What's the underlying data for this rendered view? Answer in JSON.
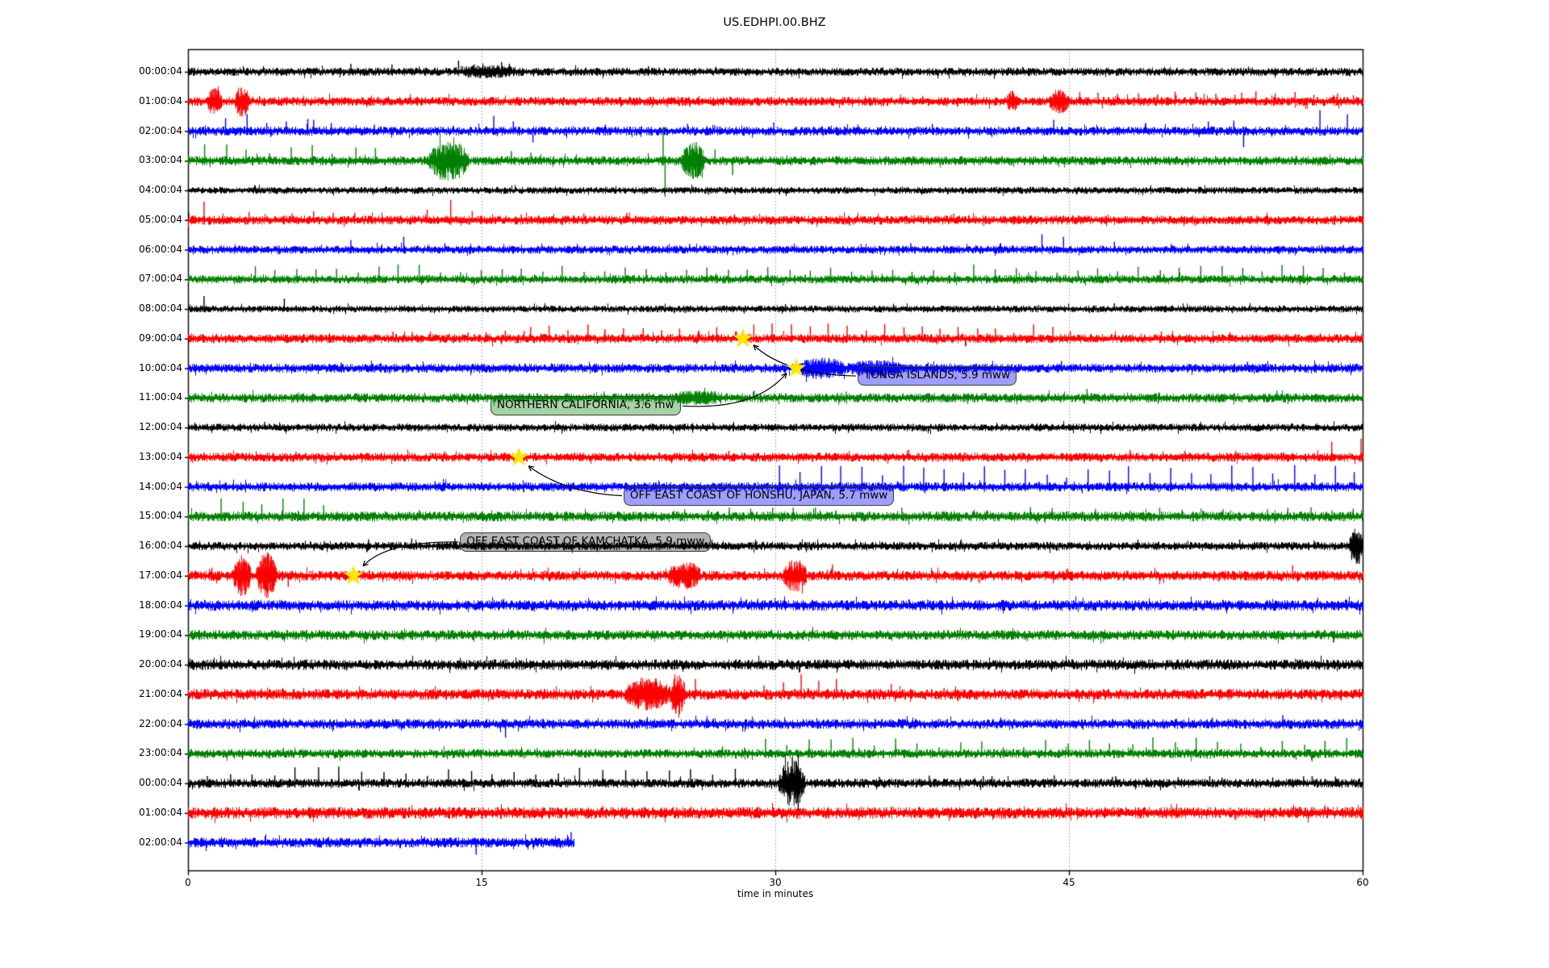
{
  "chart_data": {
    "type": "line",
    "subtype": "helicorder-dayplot",
    "title": "US.EDHPI.00.BHZ",
    "xlabel": "time in minutes",
    "xlim": [
      0,
      60
    ],
    "xticks": [
      0,
      15,
      30,
      45,
      60
    ],
    "grid_minutes": [
      15,
      30,
      45
    ],
    "grid_style": "dotted-vertical",
    "legend": "none",
    "trace_color_cycle": [
      "#000000",
      "#ff0000",
      "#0000ff",
      "#008000"
    ],
    "star_color": "#ffe600",
    "rows": [
      {
        "label": "00:00:04",
        "color": "#000000",
        "amp": 4.5,
        "end": 60,
        "seed": 11,
        "spikes": [
          [
            8.3,
            10
          ],
          [
            10.4,
            9
          ],
          [
            13.8,
            14
          ],
          [
            14.6,
            9
          ],
          [
            16.0,
            12
          ],
          [
            16.4,
            10
          ],
          [
            23.5,
            7
          ]
        ],
        "bursts": [
          [
            13.5,
            17.0,
            3
          ]
        ],
        "trains": []
      },
      {
        "label": "01:00:04",
        "color": "#ff0000",
        "amp": 5.0,
        "end": 60,
        "seed": 22,
        "spikes": [
          [
            50.4,
            12
          ],
          [
            53.8,
            11
          ],
          [
            58.7,
            10
          ]
        ],
        "bursts": [
          [
            1.0,
            1.7,
            11
          ],
          [
            2.4,
            3.1,
            13
          ],
          [
            41.8,
            42.4,
            7
          ],
          [
            44.0,
            45.0,
            9
          ]
        ],
        "trains": [
          [
            45.5,
            60,
            1.0,
            9
          ]
        ]
      },
      {
        "label": "02:00:04",
        "color": "#0000ff",
        "amp": 5.0,
        "end": 60,
        "seed": 33,
        "spikes": [
          [
            1.9,
            16
          ],
          [
            3.0,
            21
          ],
          [
            4.0,
            10
          ],
          [
            5.0,
            12
          ],
          [
            6.1,
            15
          ],
          [
            6.4,
            14
          ],
          [
            7.3,
            10
          ],
          [
            9.5,
            8
          ],
          [
            15.6,
            19
          ],
          [
            16.6,
            12
          ],
          [
            17.6,
            -14
          ],
          [
            21.3,
            8
          ],
          [
            25.5,
            9
          ],
          [
            29.9,
            11
          ],
          [
            34.2,
            8
          ],
          [
            38.0,
            9
          ],
          [
            44.2,
            14
          ],
          [
            48.9,
            10
          ],
          [
            52.1,
            12
          ],
          [
            53.4,
            13
          ],
          [
            53.9,
            -20
          ],
          [
            57.8,
            26
          ],
          [
            59.2,
            21
          ]
        ],
        "bursts": [],
        "trains": []
      },
      {
        "label": "03:00:04",
        "color": "#008000",
        "amp": 5.0,
        "end": 60,
        "seed": 44,
        "spikes": [
          [
            16.5,
            12
          ],
          [
            17.5,
            10
          ],
          [
            24.25,
            42
          ],
          [
            24.35,
            -45
          ],
          [
            26.9,
            14
          ],
          [
            27.8,
            -18
          ]
        ],
        "bursts": [
          [
            12.3,
            14.3,
            18
          ],
          [
            25.2,
            26.4,
            16
          ]
        ],
        "trains": [
          [
            0.8,
            9.7,
            1.1,
            15
          ]
        ]
      },
      {
        "label": "04:00:04",
        "color": "#000000",
        "amp": 3.8,
        "end": 60,
        "seed": 55,
        "spikes": [],
        "bursts": [],
        "trains": []
      },
      {
        "label": "05:00:04",
        "color": "#ff0000",
        "amp": 5.0,
        "end": 60,
        "seed": 66,
        "spikes": [
          [
            0.8,
            23
          ],
          [
            3.1,
            10
          ],
          [
            5.3,
            8
          ],
          [
            6.4,
            11
          ],
          [
            7.4,
            9
          ],
          [
            8.5,
            9
          ],
          [
            12.2,
            13
          ],
          [
            13.4,
            25
          ],
          [
            14.5,
            11
          ],
          [
            17.0,
            7
          ],
          [
            20.2,
            8
          ],
          [
            22.4,
            9
          ],
          [
            27.9,
            7
          ],
          [
            39.1,
            8
          ]
        ],
        "bursts": [],
        "trains": []
      },
      {
        "label": "06:00:04",
        "color": "#0000ff",
        "amp": 4.5,
        "end": 60,
        "seed": 77,
        "spikes": [
          [
            8.3,
            12
          ],
          [
            11.0,
            16
          ],
          [
            13.1,
            8
          ],
          [
            25.6,
            7
          ],
          [
            36.9,
            8
          ],
          [
            43.6,
            19
          ],
          [
            44.7,
            16
          ],
          [
            47.3,
            10
          ],
          [
            50.2,
            7
          ]
        ],
        "bursts": [],
        "trains": []
      },
      {
        "label": "07:00:04",
        "color": "#008000",
        "amp": 4.6,
        "end": 60,
        "seed": 88,
        "spikes": [],
        "bursts": [],
        "trains": [
          [
            3.4,
            60,
            1.05,
            13
          ]
        ]
      },
      {
        "label": "08:00:04",
        "color": "#000000",
        "amp": 3.8,
        "end": 60,
        "seed": 99,
        "spikes": [
          [
            0.8,
            16
          ],
          [
            4.9,
            13
          ],
          [
            30.5,
            6
          ],
          [
            47.3,
            7
          ]
        ],
        "bursts": [],
        "trains": []
      },
      {
        "label": "09:00:04",
        "color": "#ff0000",
        "amp": 5.0,
        "end": 60,
        "seed": 110,
        "spikes": [
          [
            49.7,
            9
          ],
          [
            53.2,
            8
          ]
        ],
        "bursts": [],
        "trains": [
          [
            10.5,
            17.5,
            0.95,
            8
          ],
          [
            17.5,
            46,
            0.95,
            13
          ]
        ]
      },
      {
        "label": "10:00:04",
        "color": "#0000ff",
        "amp": 5.0,
        "end": 60,
        "seed": 121,
        "spikes": [
          [
            7.8,
            7
          ],
          [
            44.6,
            9
          ],
          [
            54.1,
            8
          ]
        ],
        "bursts": [
          [
            31.1,
            33.6,
            7
          ],
          [
            33.6,
            36.5,
            4
          ]
        ],
        "trains": []
      },
      {
        "label": "11:00:04",
        "color": "#008000",
        "amp": 5.2,
        "end": 60,
        "seed": 132,
        "spikes": [
          [
            28.9,
            9
          ],
          [
            33.6,
            8
          ],
          [
            45.9,
            11
          ],
          [
            55.6,
            9
          ]
        ],
        "bursts": [
          [
            24.5,
            27.5,
            3
          ]
        ],
        "trains": []
      },
      {
        "label": "12:00:04",
        "color": "#000000",
        "amp": 4.2,
        "end": 60,
        "seed": 143,
        "spikes": [
          [
            3.9,
            7
          ],
          [
            26.8,
            6
          ]
        ],
        "bursts": [],
        "trains": []
      },
      {
        "label": "13:00:04",
        "color": "#ff0000",
        "amp": 5.0,
        "end": 60,
        "seed": 154,
        "spikes": [
          [
            5.5,
            7
          ],
          [
            27.6,
            8
          ],
          [
            36.8,
            9
          ],
          [
            48.1,
            9
          ],
          [
            50.9,
            8
          ],
          [
            53.5,
            8
          ],
          [
            58.4,
            19
          ],
          [
            59.9,
            23
          ]
        ],
        "bursts": [],
        "trains": []
      },
      {
        "label": "14:00:04",
        "color": "#0000ff",
        "amp": 5.0,
        "end": 60,
        "seed": 165,
        "spikes": [
          [
            12.6,
            7
          ]
        ],
        "bursts": [],
        "trains": [
          [
            30.2,
            60,
            1.05,
            19
          ]
        ]
      },
      {
        "label": "15:00:04",
        "color": "#008000",
        "amp": 5.5,
        "end": 60,
        "seed": 176,
        "spikes": [
          [
            11.8,
            8
          ]
        ],
        "bursts": [],
        "trains": [
          [
            1.7,
            7.3,
            1.05,
            17
          ],
          [
            25.4,
            60,
            1.1,
            8
          ]
        ]
      },
      {
        "label": "16:00:04",
        "color": "#000000",
        "amp": 4.6,
        "end": 60,
        "seed": 187,
        "spikes": [
          [
            48.5,
            8
          ],
          [
            53.7,
            8
          ],
          [
            57.5,
            7
          ],
          [
            59.8,
            -22
          ]
        ],
        "bursts": [
          [
            59.3,
            60,
            16
          ]
        ],
        "trains": [
          [
            7,
            29,
            2.2,
            7
          ]
        ]
      },
      {
        "label": "17:00:04",
        "color": "#ff0000",
        "amp": 5.5,
        "end": 60,
        "seed": 198,
        "spikes": [
          [
            1.2,
            10
          ],
          [
            5.1,
            -14
          ],
          [
            32.9,
            14
          ],
          [
            44.9,
            9
          ],
          [
            56.4,
            13
          ]
        ],
        "bursts": [
          [
            2.3,
            3.2,
            17
          ],
          [
            3.5,
            4.5,
            20
          ],
          [
            24.5,
            26.2,
            10
          ],
          [
            30.4,
            31.6,
            13
          ]
        ],
        "trains": []
      },
      {
        "label": "18:00:04",
        "color": "#0000ff",
        "amp": 6.0,
        "end": 60,
        "seed": 209,
        "spikes": [],
        "bursts": [],
        "trains": []
      },
      {
        "label": "19:00:04",
        "color": "#008000",
        "amp": 5.5,
        "end": 60,
        "seed": 220,
        "spikes": [],
        "bursts": [],
        "trains": []
      },
      {
        "label": "20:00:04",
        "color": "#000000",
        "amp": 5.8,
        "end": 60,
        "seed": 231,
        "spikes": [],
        "bursts": [],
        "trains": []
      },
      {
        "label": "21:00:04",
        "color": "#ff0000",
        "amp": 6.0,
        "end": 60,
        "seed": 242,
        "spikes": [
          [
            24.9,
            -24
          ],
          [
            25.9,
            19
          ],
          [
            29.4,
            11
          ],
          [
            30.4,
            15
          ],
          [
            31.3,
            25
          ],
          [
            32.2,
            17
          ],
          [
            33.1,
            19
          ],
          [
            35.9,
            13
          ],
          [
            38.6,
            8
          ]
        ],
        "bursts": [
          [
            22.3,
            24.6,
            13
          ],
          [
            24.6,
            25.4,
            18
          ]
        ],
        "trains": []
      },
      {
        "label": "22:00:04",
        "color": "#0000ff",
        "amp": 5.5,
        "end": 60,
        "seed": 253,
        "spikes": [
          [
            16.2,
            -17
          ],
          [
            32.1,
            7
          ],
          [
            41.5,
            8
          ],
          [
            52.3,
            8
          ],
          [
            55.9,
            11
          ]
        ],
        "bursts": [],
        "trains": []
      },
      {
        "label": "23:00:04",
        "color": "#008000",
        "amp": 5.0,
        "end": 60,
        "seed": 264,
        "spikes": [],
        "bursts": [],
        "trains": [
          [
            27.3,
            60,
            1.1,
            14
          ]
        ]
      },
      {
        "label": "00:00:04",
        "color": "#000000",
        "amp": 5.0,
        "end": 60,
        "seed": 275,
        "spikes": [
          [
            30.85,
            32
          ],
          [
            31.15,
            -34
          ],
          [
            35.3,
            8
          ],
          [
            40.6,
            9
          ],
          [
            47.2,
            8
          ],
          [
            52.8,
            7
          ],
          [
            57.4,
            9
          ]
        ],
        "bursts": [
          [
            30.2,
            31.5,
            22
          ]
        ],
        "trains": [
          [
            1.0,
            28.5,
            1.12,
            15
          ],
          [
            33,
            60,
            1.6,
            7
          ]
        ]
      },
      {
        "label": "01:00:04",
        "color": "#ff0000",
        "amp": 6.5,
        "end": 60,
        "seed": 286,
        "spikes": [],
        "bursts": [],
        "trains": []
      },
      {
        "label": "02:00:04",
        "color": "#0000ff",
        "amp": 5.5,
        "end": 19.7,
        "seed": 297,
        "spikes": [
          [
            14.7,
            -15
          ],
          [
            19.55,
            13
          ]
        ],
        "bursts": [],
        "trains": []
      }
    ],
    "events": [
      {
        "label": "TONGA ISLANDS, 5.9 mww",
        "star": {
          "minute": 28.35,
          "row": 9
        },
        "box": {
          "left_minute": 34.2,
          "center_y_row": 10.26,
          "fill": "rgba(0,0,255,0.38)"
        },
        "arrow": {
          "start_edge": "left",
          "ctrl_offset": [
            -23,
            18
          ],
          "end_offset": [
            13,
            8
          ]
        }
      },
      {
        "label": "NORTHERN CALIFORNIA, 3.6 mw",
        "star": {
          "minute": 31.07,
          "row": 10
        },
        "box": {
          "left_minute": 15.45,
          "center_y_row": 11.27,
          "fill": "rgba(0,128,0,0.35)"
        },
        "arrow": {
          "start_edge": "right",
          "ctrl_offset": [
            26,
            26
          ],
          "end_offset": [
            -12,
            6
          ]
        }
      },
      {
        "label": "OFF EAST COAST OF HONSHU, JAPAN, 5.7 mww",
        "star": {
          "minute": 16.9,
          "row": 13
        },
        "box": {
          "left_minute": 22.25,
          "center_y_row": 14.3,
          "fill": "rgba(0,0,255,0.38)"
        },
        "arrow": {
          "start_edge": "left",
          "ctrl_offset": [
            -13,
            15
          ],
          "end_offset": [
            12,
            11
          ]
        }
      },
      {
        "label": "OFF EAST COAST OF KAMCHATKA, 5.9 mww",
        "star": {
          "minute": 8.45,
          "row": 17
        },
        "box": {
          "left_minute": 13.9,
          "center_y_row": 15.86,
          "fill": "rgba(0,0,0,0.30)"
        },
        "arrow": {
          "start_edge": "left",
          "ctrl_offset": [
            -31,
            -16
          ],
          "end_offset": [
            12,
            -12
          ]
        }
      }
    ]
  }
}
